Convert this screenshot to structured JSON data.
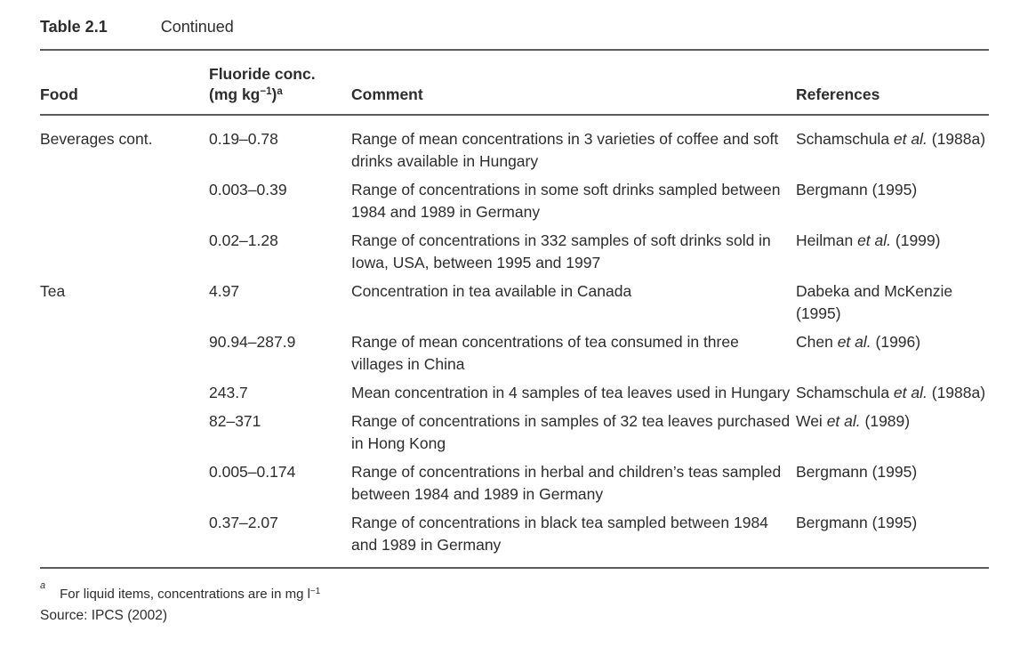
{
  "caption": {
    "label": "Table 2.1",
    "continued": "Continued"
  },
  "table": {
    "columns": {
      "food": "Food",
      "conc_line1": "Fluoride conc.",
      "conc_unit_pre": "(mg kg",
      "conc_unit_exp": "−1",
      "conc_unit_close": ")",
      "conc_note_marker": "a",
      "comment": "Comment",
      "references": "References"
    },
    "rows": [
      {
        "food": "Beverages cont.",
        "conc": "0.19–0.78",
        "comment": "Range of mean concentrations in 3 varieties of coffee and soft drinks available in Hungary",
        "ref_pre": "Schamschula ",
        "ref_italic": "et al.",
        "ref_post": " (1988a)"
      },
      {
        "food": "",
        "conc": "0.003–0.39",
        "comment": "Range of concentrations in some soft drinks sampled between 1984 and 1989 in Germany",
        "ref_pre": "Bergmann (1995)",
        "ref_italic": "",
        "ref_post": ""
      },
      {
        "food": "",
        "conc": "0.02–1.28",
        "comment": "Range of concentrations in 332 samples of soft drinks sold in Iowa, USA, between 1995 and 1997",
        "ref_pre": "Heilman ",
        "ref_italic": "et al.",
        "ref_post": " (1999)"
      },
      {
        "food": "Tea",
        "conc": "4.97",
        "comment": "Concentration in tea available in Canada",
        "ref_pre": "Dabeka and McKenzie (1995)",
        "ref_italic": "",
        "ref_post": ""
      },
      {
        "food": "",
        "conc": "90.94–287.9",
        "comment": "Range of mean concentrations of tea consumed in three villages in China",
        "ref_pre": "Chen ",
        "ref_italic": "et al.",
        "ref_post": " (1996)"
      },
      {
        "food": "",
        "conc": "243.7",
        "comment": "Mean concentration in 4 samples of tea leaves used in Hungary",
        "ref_pre": "Schamschula ",
        "ref_italic": "et al.",
        "ref_post": " (1988a)"
      },
      {
        "food": "",
        "conc": "82–371",
        "comment": "Range of concentrations in samples of 32 tea leaves purchased in Hong Kong",
        "ref_pre": "Wei ",
        "ref_italic": "et al.",
        "ref_post": " (1989)"
      },
      {
        "food": "",
        "conc": "0.005–0.174",
        "comment": "Range of concentrations in herbal and children’s teas sampled between 1984 and 1989 in Germany",
        "ref_pre": "Bergmann (1995)",
        "ref_italic": "",
        "ref_post": ""
      },
      {
        "food": "",
        "conc": "0.37–2.07",
        "comment": "Range of concentrations in black tea sampled between 1984 and 1989 in Germany",
        "ref_pre": "Bergmann (1995)",
        "ref_italic": "",
        "ref_post": ""
      }
    ]
  },
  "footnotes": {
    "marker": "a",
    "text_pre": "For liquid items, concentrations are in mg l",
    "text_exp": "−1",
    "source": "Source: IPCS (2002)"
  },
  "colors": {
    "background": "#ffffff",
    "text": "#2d2d2d",
    "rule": "#5b5b5b"
  }
}
